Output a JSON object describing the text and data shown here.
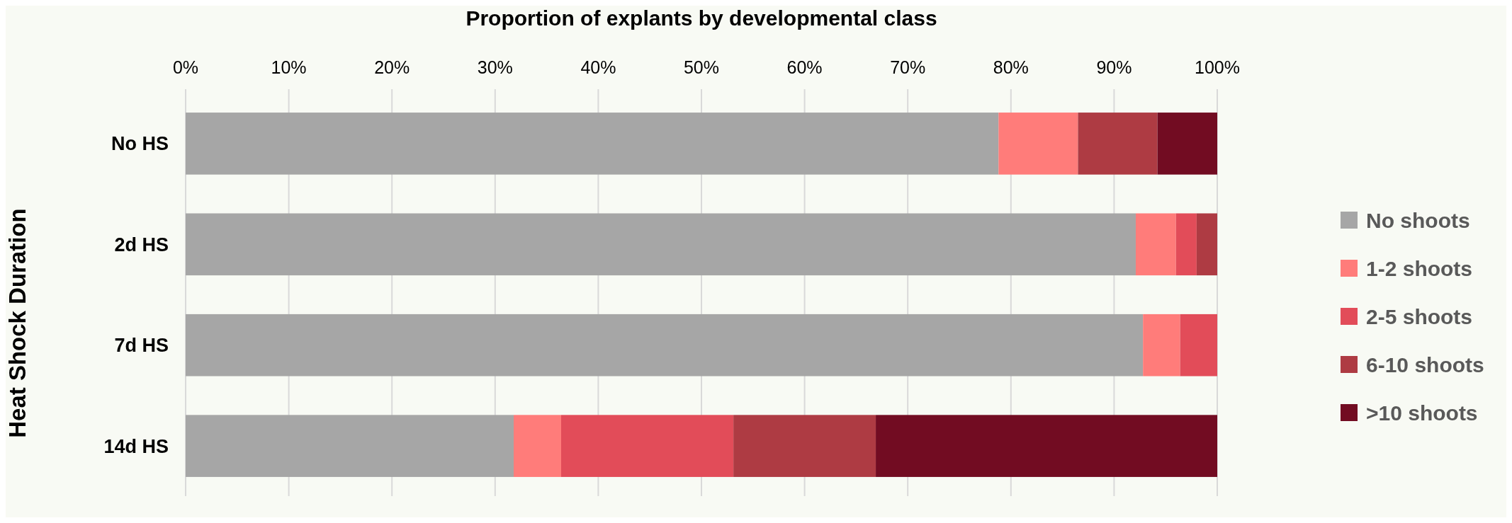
{
  "chart_data": {
    "type": "bar",
    "orientation": "horizontal",
    "stacked": true,
    "title": "Proportion of explants by developmental class",
    "ylabel": "Heat Shock Duration",
    "categories": [
      "No HS",
      "2d HS",
      "7d HS",
      "14d HS"
    ],
    "series": [
      {
        "name": "No shoots",
        "color": "#a6a6a6",
        "values": [
          78.8,
          92.1,
          92.8,
          31.8
        ]
      },
      {
        "name": "1-2 shoots",
        "color": "#ff7c7a",
        "values": [
          7.7,
          3.9,
          3.6,
          4.6
        ]
      },
      {
        "name": "2-5 shoots",
        "color": "#e24c59",
        "values": [
          0,
          2.0,
          3.6,
          16.7
        ]
      },
      {
        "name": "6-10 shoots",
        "color": "#ae3b43",
        "values": [
          7.7,
          2.0,
          0,
          13.8
        ]
      },
      {
        "name": ">10 shoots",
        "color": "#720c22",
        "values": [
          5.8,
          0,
          0,
          33.1
        ]
      }
    ],
    "xlim": [
      0,
      100
    ],
    "xticks": [
      {
        "value": 0,
        "label": "0%"
      },
      {
        "value": 10,
        "label": "10%"
      },
      {
        "value": 20,
        "label": "20%"
      },
      {
        "value": 30,
        "label": "30%"
      },
      {
        "value": 40,
        "label": "40%"
      },
      {
        "value": 50,
        "label": "50%"
      },
      {
        "value": 60,
        "label": "60%"
      },
      {
        "value": 70,
        "label": "70%"
      },
      {
        "value": 80,
        "label": "80%"
      },
      {
        "value": 90,
        "label": "90%"
      },
      {
        "value": 100,
        "label": "100%"
      }
    ],
    "grid": "x",
    "legend": "right"
  }
}
